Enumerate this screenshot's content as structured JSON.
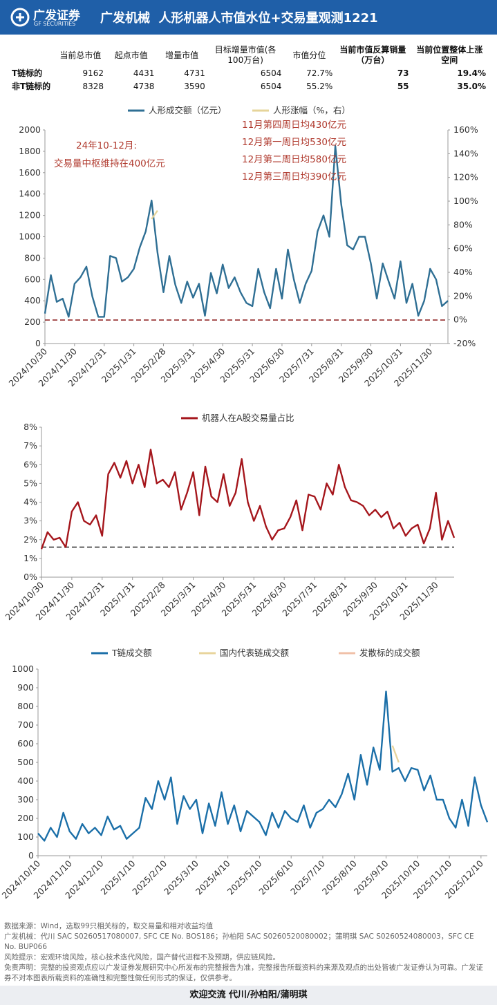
{
  "header": {
    "logo": "广发证券",
    "logo_en": "GF SECURITIES",
    "title": "广发机械  人形机器人市值水位+交易量观测1221"
  },
  "table": {
    "columns": [
      "",
      "当前总市值",
      "起点市值",
      "增量市值",
      "目标增量市值(各100万台)",
      "市值分位",
      "当前市值反算销量（万台）",
      "当前位置整体上涨空间"
    ],
    "rows": [
      [
        "T链标的",
        "9162",
        "4431",
        "4731",
        "6504",
        "72.7%",
        "73",
        "19.4%"
      ],
      [
        "非T链标的",
        "8328",
        "4738",
        "3590",
        "6504",
        "55.2%",
        "55",
        "35.0%"
      ]
    ]
  },
  "chart_data": [
    {
      "type": "line",
      "categories": [
        "2024/10/30",
        null,
        null,
        null,
        null,
        "2024/11/30",
        null,
        null,
        null,
        null,
        "2024/12/31",
        null,
        null,
        null,
        null,
        "2025/1/31",
        null,
        null,
        null,
        null,
        "2025/2/28",
        null,
        null,
        null,
        null,
        "2025/3/31",
        null,
        null,
        null,
        null,
        "2025/4/30",
        null,
        null,
        null,
        null,
        "2025/5/31",
        null,
        null,
        null,
        null,
        "2025/6/30",
        null,
        null,
        null,
        null,
        "2025/7/31",
        null,
        null,
        null,
        null,
        "2025/8/31",
        null,
        null,
        null,
        null,
        "2025/9/30",
        null,
        null,
        null,
        null,
        "2025/10/31",
        null,
        null,
        null,
        null,
        "2025/11/30",
        null,
        null,
        null
      ],
      "series": [
        {
          "name": "人形成交额（亿元）",
          "color": "#2f6f94",
          "values": [
            280,
            640,
            390,
            420,
            250,
            560,
            620,
            720,
            440,
            250,
            250,
            820,
            800,
            580,
            620,
            700,
            900,
            1050,
            1340,
            850,
            480,
            820,
            550,
            380,
            580,
            430,
            560,
            260,
            660,
            470,
            740,
            520,
            620,
            480,
            380,
            350,
            700,
            480,
            330,
            700,
            420,
            880,
            600,
            380,
            560,
            680,
            1050,
            1200,
            1000,
            1850,
            1300,
            920,
            880,
            1000,
            1000,
            750,
            420,
            750,
            580,
            420,
            770,
            380,
            560,
            260,
            400,
            700,
            600,
            350,
            400
          ]
        },
        {
          "name": "人形涨幅（%，右）",
          "color": "#e6d49a",
          "axis": "y2",
          "values": [
            null,
            null,
            null,
            null,
            null,
            null,
            null,
            null,
            null,
            null,
            null,
            null,
            null,
            null,
            null,
            null,
            null,
            null,
            85,
            92,
            null,
            null,
            null,
            null,
            null,
            null,
            null,
            null,
            null,
            null,
            null,
            null,
            null,
            null,
            null,
            null,
            null,
            null,
            null,
            null,
            null,
            null,
            null,
            null,
            null,
            null,
            null,
            null,
            null,
            null,
            null,
            null,
            null,
            null,
            null,
            null,
            null,
            null,
            null,
            null,
            null,
            null,
            null,
            null,
            null,
            null,
            null,
            null,
            null
          ]
        }
      ],
      "ylim": [
        0,
        2000
      ],
      "yticks": [
        0,
        200,
        400,
        600,
        800,
        1000,
        1200,
        1400,
        1600,
        1800,
        2000
      ],
      "y2lim": [
        -20,
        160
      ],
      "y2ticks": [
        {
          "value": -20,
          "label": "-20%"
        },
        {
          "value": 0,
          "label": "0%"
        },
        {
          "value": 20,
          "label": "20%"
        },
        {
          "value": 40,
          "label": "40%"
        },
        {
          "value": 60,
          "label": "60%"
        },
        {
          "value": 80,
          "label": "80%"
        },
        {
          "value": 100,
          "label": "100%"
        },
        {
          "value": 120,
          "label": "120%"
        },
        {
          "value": 140,
          "label": "140%"
        },
        {
          "value": 160,
          "label": "160%"
        }
      ],
      "reference_line": 220,
      "reference_color": "#8b1a1a",
      "annotations": [
        "24年10-12月:",
        "交易量中枢维持在400亿元",
        "11月第四周日均430亿元",
        "12月第一周日均530亿元",
        "12月第二周日均580亿元",
        "12月第三周日均390亿元"
      ],
      "annotation_color": "#b03a2e"
    },
    {
      "type": "line",
      "categories": [
        "2024/10/30",
        null,
        null,
        null,
        null,
        "2024/11/30",
        null,
        null,
        null,
        null,
        "2024/12/31",
        null,
        null,
        null,
        null,
        "2025/1/31",
        null,
        null,
        null,
        null,
        "2025/2/28",
        null,
        null,
        null,
        null,
        "2025/3/31",
        null,
        null,
        null,
        null,
        "2025/4/30",
        null,
        null,
        null,
        null,
        "2025/5/31",
        null,
        null,
        null,
        null,
        "2025/6/30",
        null,
        null,
        null,
        null,
        "2025/7/31",
        null,
        null,
        null,
        null,
        "2025/8/31",
        null,
        null,
        null,
        null,
        "2025/9/30",
        null,
        null,
        null,
        null,
        "2025/10/31",
        null,
        null,
        null,
        null,
        "2025/11/30",
        null,
        null,
        null
      ],
      "series": [
        {
          "name": "机器人在A股交易量占比",
          "color": "#a5161c",
          "values": [
            1.5,
            2.4,
            2.0,
            2.1,
            1.6,
            3.5,
            4.0,
            3.0,
            2.8,
            3.3,
            2.2,
            5.5,
            6.1,
            5.3,
            6.2,
            5.0,
            6.0,
            4.8,
            6.8,
            5.0,
            5.2,
            4.8,
            5.6,
            3.6,
            4.5,
            5.6,
            3.3,
            5.9,
            4.3,
            4.0,
            5.5,
            3.8,
            4.5,
            6.3,
            4.0,
            3.0,
            3.8,
            2.7,
            2.0,
            2.5,
            2.6,
            3.2,
            4.1,
            2.5,
            4.4,
            4.3,
            3.6,
            5.0,
            4.4,
            6.0,
            4.8,
            4.1,
            4.0,
            3.8,
            3.3,
            3.6,
            3.2,
            3.5,
            2.6,
            2.9,
            2.2,
            2.6,
            2.8,
            1.8,
            2.6,
            4.5,
            2.0,
            3.0,
            2.1
          ]
        }
      ],
      "ylim": [
        0,
        8
      ],
      "yticks": [
        {
          "value": 0,
          "label": "0%"
        },
        {
          "value": 1,
          "label": "1%"
        },
        {
          "value": 2,
          "label": "2%"
        },
        {
          "value": 3,
          "label": "3%"
        },
        {
          "value": 4,
          "label": "4%"
        },
        {
          "value": 5,
          "label": "5%"
        },
        {
          "value": 6,
          "label": "6%"
        },
        {
          "value": 7,
          "label": "7%"
        },
        {
          "value": 8,
          "label": "8%"
        }
      ],
      "reference_line": 1.6,
      "reference_color": "#333333"
    },
    {
      "type": "line",
      "categories": [
        "2024/10/10",
        null,
        null,
        null,
        null,
        "2024/11/10",
        null,
        null,
        null,
        null,
        "2024/12/10",
        null,
        null,
        null,
        null,
        "2025/1/10",
        null,
        null,
        null,
        null,
        "2025/2/10",
        null,
        null,
        null,
        null,
        "2025/3/10",
        null,
        null,
        null,
        null,
        "2025/4/10",
        null,
        null,
        null,
        null,
        "2025/5/10",
        null,
        null,
        null,
        null,
        "2025/6/10",
        null,
        null,
        null,
        null,
        "2025/7/10",
        null,
        null,
        null,
        null,
        "2025/8/10",
        null,
        null,
        null,
        null,
        "2025/9/10",
        null,
        null,
        null,
        null,
        "2025/10/10",
        null,
        null,
        null,
        null,
        "2025/11/10",
        null,
        null,
        null,
        null,
        "2025/12/10",
        null
      ],
      "series": [
        {
          "name": "T链成交额",
          "color": "#1b6fa8",
          "values": [
            120,
            80,
            150,
            100,
            230,
            130,
            90,
            170,
            120,
            150,
            110,
            210,
            140,
            160,
            90,
            120,
            150,
            310,
            250,
            400,
            300,
            420,
            170,
            320,
            250,
            300,
            120,
            280,
            160,
            340,
            170,
            270,
            130,
            240,
            210,
            180,
            110,
            230,
            150,
            240,
            200,
            180,
            270,
            150,
            230,
            250,
            300,
            260,
            330,
            440,
            300,
            540,
            380,
            580,
            460,
            880,
            450,
            470,
            400,
            470,
            460,
            350,
            430,
            300,
            300,
            200,
            150,
            300,
            160,
            420,
            270,
            180
          ]
        },
        {
          "name": "国内代表链成交额",
          "color": "#e8d49c",
          "values": [
            null,
            null,
            null,
            null,
            null,
            null,
            null,
            null,
            null,
            null,
            null,
            null,
            null,
            null,
            null,
            null,
            null,
            null,
            null,
            null,
            null,
            null,
            null,
            null,
            null,
            null,
            null,
            null,
            null,
            null,
            null,
            null,
            null,
            null,
            null,
            null,
            null,
            null,
            null,
            null,
            null,
            null,
            null,
            null,
            null,
            null,
            null,
            null,
            null,
            null,
            null,
            null,
            null,
            null,
            null,
            null,
            590,
            500,
            null,
            null,
            null,
            null,
            null,
            null,
            null,
            null,
            null,
            null,
            null,
            null,
            null,
            null
          ]
        },
        {
          "name": "发散标的成交额",
          "color": "#f0c0a8",
          "values": [
            null,
            null,
            null,
            null,
            null,
            null,
            null,
            null,
            null,
            null,
            null,
            null,
            null,
            null,
            null,
            null,
            null,
            null,
            null,
            null,
            null,
            null,
            null,
            null,
            null,
            null,
            null,
            null,
            null,
            null,
            null,
            null,
            null,
            null,
            null,
            null,
            null,
            null,
            null,
            null,
            null,
            null,
            null,
            null,
            null,
            null,
            null,
            null,
            null,
            null,
            null,
            null,
            null,
            null,
            null,
            null,
            null,
            null,
            null,
            null,
            null,
            null,
            null,
            null,
            null,
            null,
            null,
            null,
            null,
            null,
            null,
            null
          ]
        }
      ],
      "ylim": [
        0,
        1000
      ],
      "yticks": [
        0,
        100,
        200,
        300,
        400,
        500,
        600,
        700,
        800,
        900,
        1000
      ]
    }
  ],
  "footer": {
    "lines": [
      "数据来源：Wind，选取99只相关标的，取交易量和相对收益均值",
      "广发机械：代川 SAC S0260517080007, SFC CE No. BOS186；孙柏阳 SAC S0260520080002；蒲明琪 SAC S0260524080003，SFC CE No. BUP066",
      "风险提示：宏观环境风险，核心技术迭代风险，国产替代进程不及预期，供应链风险。",
      "免责声明：完整的投资观点应以广发证券发展研究中心所发布的完整报告为准，完整报告所载资料的来源及观点的出处皆被广发证券认为可靠。广发证券不对本图表所载资料的准确性和完整性做任何形式的保证，仅供参考。"
    ],
    "contact": "欢迎交流 代川/孙柏阳/蒲明琪"
  }
}
